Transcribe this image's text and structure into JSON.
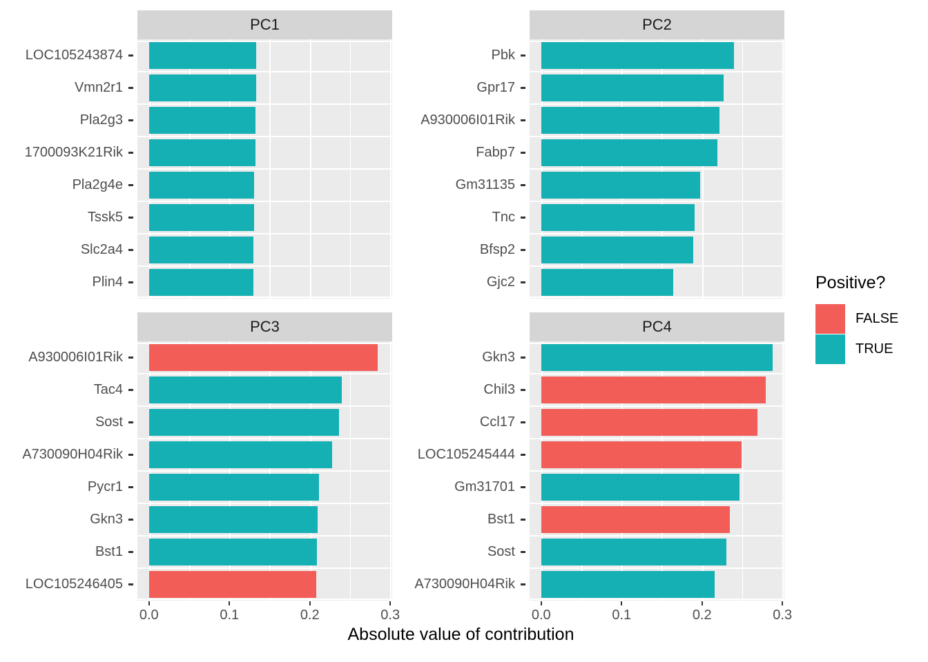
{
  "colors": {
    "positive_true": "#15B0B4",
    "positive_false": "#F25D58",
    "panel_bg": "#EBEBEB",
    "strip_bg": "#D5D5D5",
    "grid": "#FFFFFF",
    "axis_text": "#4D4D4D",
    "strip_text": "#1A1A1A",
    "tick_mark": "#333333"
  },
  "chart_data": {
    "type": "bar",
    "orientation": "horizontal",
    "xlabel": "Absolute value of contribution",
    "xlim": [
      -0.0144,
      0.3024
    ],
    "x_ticks": [
      0.0,
      0.1,
      0.2,
      0.3
    ],
    "x_tick_labels": [
      "0.0",
      "0.1",
      "0.2",
      "0.3"
    ],
    "x_minor_ticks": [
      0.05,
      0.15,
      0.25
    ],
    "grid": "on",
    "legend": {
      "title": "Positive?",
      "position": "right",
      "entries": [
        {
          "label": "FALSE",
          "color": "#F25D58"
        },
        {
          "label": "TRUE",
          "color": "#15B0B4"
        }
      ]
    },
    "facets": [
      {
        "label": "PC1",
        "bars": [
          {
            "gene": "LOC105243874",
            "value": 0.133,
            "positive": true
          },
          {
            "gene": "Vmn2r1",
            "value": 0.133,
            "positive": true
          },
          {
            "gene": "Pla2g3",
            "value": 0.132,
            "positive": true
          },
          {
            "gene": "1700093K21Rik",
            "value": 0.132,
            "positive": true
          },
          {
            "gene": "Pla2g4e",
            "value": 0.131,
            "positive": true
          },
          {
            "gene": "Tssk5",
            "value": 0.131,
            "positive": true
          },
          {
            "gene": "Slc2a4",
            "value": 0.13,
            "positive": true
          },
          {
            "gene": "Plin4",
            "value": 0.13,
            "positive": true
          }
        ]
      },
      {
        "label": "PC2",
        "bars": [
          {
            "gene": "Pbk",
            "value": 0.24,
            "positive": true
          },
          {
            "gene": "Gpr17",
            "value": 0.227,
            "positive": true
          },
          {
            "gene": "A930006I01Rik",
            "value": 0.222,
            "positive": true
          },
          {
            "gene": "Fabp7",
            "value": 0.219,
            "positive": true
          },
          {
            "gene": "Gm31135",
            "value": 0.198,
            "positive": true
          },
          {
            "gene": "Tnc",
            "value": 0.191,
            "positive": true
          },
          {
            "gene": "Bfsp2",
            "value": 0.189,
            "positive": true
          },
          {
            "gene": "Gjc2",
            "value": 0.164,
            "positive": true
          }
        ]
      },
      {
        "label": "PC3",
        "bars": [
          {
            "gene": "A930006I01Rik",
            "value": 0.284,
            "positive": false
          },
          {
            "gene": "Tac4",
            "value": 0.24,
            "positive": true
          },
          {
            "gene": "Sost",
            "value": 0.236,
            "positive": true
          },
          {
            "gene": "A730090H04Rik",
            "value": 0.228,
            "positive": true
          },
          {
            "gene": "Pycr1",
            "value": 0.211,
            "positive": true
          },
          {
            "gene": "Gkn3",
            "value": 0.21,
            "positive": true
          },
          {
            "gene": "Bst1",
            "value": 0.209,
            "positive": true
          },
          {
            "gene": "LOC105246405",
            "value": 0.208,
            "positive": false
          }
        ]
      },
      {
        "label": "PC4",
        "bars": [
          {
            "gene": "Gkn3",
            "value": 0.288,
            "positive": true
          },
          {
            "gene": "Chil3",
            "value": 0.279,
            "positive": false
          },
          {
            "gene": "Ccl17",
            "value": 0.269,
            "positive": false
          },
          {
            "gene": "LOC105245444",
            "value": 0.249,
            "positive": false
          },
          {
            "gene": "Gm31701",
            "value": 0.247,
            "positive": true
          },
          {
            "gene": "Bst1",
            "value": 0.235,
            "positive": false
          },
          {
            "gene": "Sost",
            "value": 0.23,
            "positive": true
          },
          {
            "gene": "A730090H04Rik",
            "value": 0.216,
            "positive": true
          }
        ]
      }
    ]
  }
}
